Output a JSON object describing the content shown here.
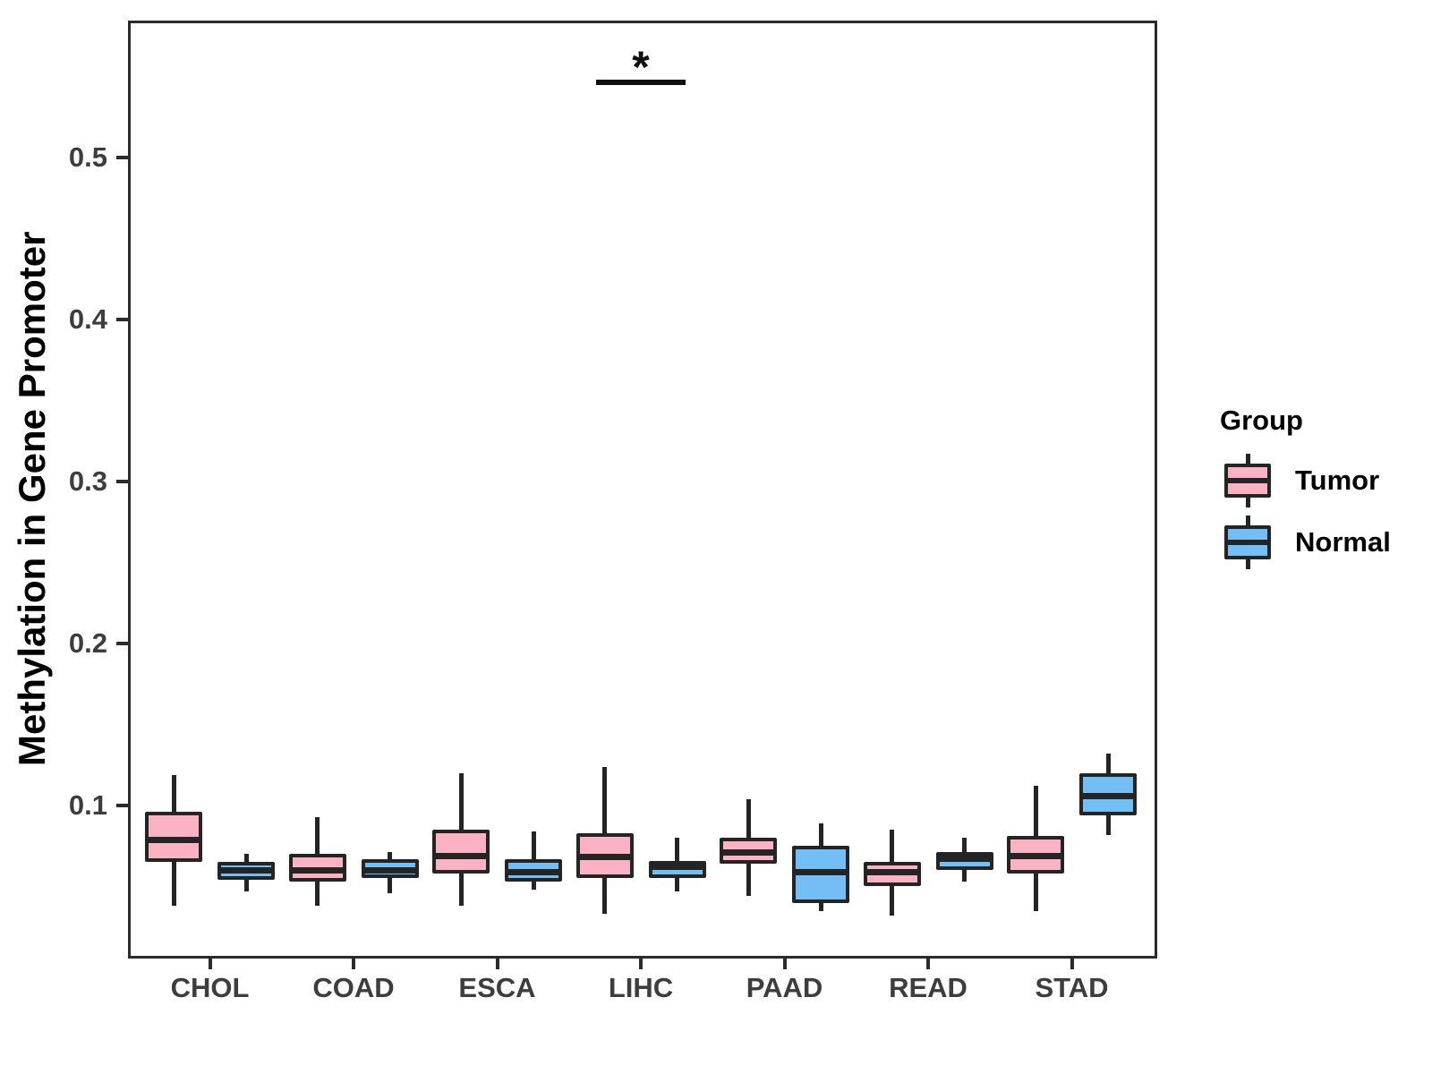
{
  "chart_data": {
    "type": "boxplot",
    "title": "",
    "xlabel": "",
    "ylabel": "Methylation in Gene Promoter",
    "ylim": [
      0.005,
      0.585
    ],
    "yticks": [
      0.1,
      0.2,
      0.3,
      0.4,
      0.5
    ],
    "grid": false,
    "legend_position": "right",
    "categories": [
      "CHOL",
      "COAD",
      "ESCA",
      "LIHC",
      "PAAD",
      "READ",
      "STAD"
    ],
    "legend": {
      "title": "Group",
      "entries": [
        {
          "label": "Tumor",
          "color": "#FBB3C3"
        },
        {
          "label": "Normal",
          "color": "#73BFF5"
        }
      ]
    },
    "significance": {
      "category": "LIHC",
      "label": "*",
      "y": 0.545
    },
    "series": [
      {
        "name": "Tumor",
        "color": "#FBB3C3",
        "boxes": [
          {
            "category": "CHOL",
            "whisker_low": 0.038,
            "q1": 0.065,
            "median": 0.079,
            "q3": 0.096,
            "whisker_high": 0.119
          },
          {
            "category": "COAD",
            "whisker_low": 0.038,
            "q1": 0.053,
            "median": 0.06,
            "q3": 0.07,
            "whisker_high": 0.093
          },
          {
            "category": "ESCA",
            "whisker_low": 0.038,
            "q1": 0.058,
            "median": 0.069,
            "q3": 0.085,
            "whisker_high": 0.12
          },
          {
            "category": "LIHC",
            "whisker_low": 0.033,
            "q1": 0.055,
            "median": 0.068,
            "q3": 0.083,
            "whisker_high": 0.124
          },
          {
            "category": "PAAD",
            "whisker_low": 0.044,
            "q1": 0.064,
            "median": 0.071,
            "q3": 0.08,
            "whisker_high": 0.104
          },
          {
            "category": "READ",
            "whisker_low": 0.032,
            "q1": 0.05,
            "median": 0.059,
            "q3": 0.065,
            "whisker_high": 0.085
          },
          {
            "category": "STAD",
            "whisker_low": 0.035,
            "q1": 0.058,
            "median": 0.069,
            "q3": 0.081,
            "whisker_high": 0.112
          }
        ]
      },
      {
        "name": "Normal",
        "color": "#73BFF5",
        "boxes": [
          {
            "category": "CHOL",
            "whisker_low": 0.047,
            "q1": 0.054,
            "median": 0.06,
            "q3": 0.065,
            "whisker_high": 0.07
          },
          {
            "category": "COAD",
            "whisker_low": 0.046,
            "q1": 0.055,
            "median": 0.06,
            "q3": 0.067,
            "whisker_high": 0.071
          },
          {
            "category": "ESCA",
            "whisker_low": 0.048,
            "q1": 0.053,
            "median": 0.059,
            "q3": 0.067,
            "whisker_high": 0.084
          },
          {
            "category": "LIHC",
            "whisker_low": 0.047,
            "q1": 0.055,
            "median": 0.062,
            "q3": 0.066,
            "whisker_high": 0.08
          },
          {
            "category": "PAAD",
            "whisker_low": 0.035,
            "q1": 0.04,
            "median": 0.059,
            "q3": 0.075,
            "whisker_high": 0.089
          },
          {
            "category": "READ",
            "whisker_low": 0.053,
            "q1": 0.06,
            "median": 0.067,
            "q3": 0.071,
            "whisker_high": 0.08
          },
          {
            "category": "STAD",
            "whisker_low": 0.082,
            "q1": 0.094,
            "median": 0.106,
            "q3": 0.12,
            "whisker_high": 0.132
          }
        ]
      }
    ],
    "colors": {
      "box_line": "#242424",
      "axis_line": "#2b2b2b",
      "tick_label": "#3d3d3d",
      "text": "#000000",
      "background": "#ffffff"
    }
  }
}
